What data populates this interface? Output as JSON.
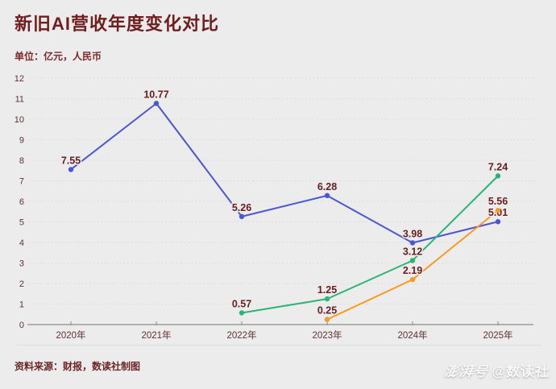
{
  "title": "新旧AI营收年度变化对比",
  "subtitle": "单位：亿元，人民币",
  "footer": {
    "source": "资料来源：财报，数读社制图"
  },
  "watermark": {
    "brand": "澎湃号",
    "handle": "@数读社"
  },
  "colors": {
    "background": "#ececec",
    "title": "#701d1d",
    "subtitle": "#7a2a2a",
    "value_label": "#66201f",
    "axis_tick_label": "#5e3333",
    "axis_line": "#8c8c8c",
    "grid_line": "#d8d8d8",
    "series_blue": "#4a55d8",
    "series_green": "#2ab475",
    "series_orange": "#f89a1e"
  },
  "chart_data": {
    "type": "line",
    "title": "新旧AI营收年度变化对比",
    "subtitle": "单位：亿元，人民币",
    "xlabel": "",
    "ylabel": "",
    "categories": [
      "2020年",
      "2021年",
      "2022年",
      "2023年",
      "2024年",
      "2025年"
    ],
    "series": [
      {
        "name": "blue-line",
        "color": "#4a55d8",
        "values": [
          7.55,
          10.77,
          5.26,
          6.28,
          3.98,
          5.01
        ]
      },
      {
        "name": "green-line",
        "color": "#2ab475",
        "values": [
          null,
          null,
          0.57,
          1.25,
          3.12,
          7.24
        ]
      },
      {
        "name": "orange-line",
        "color": "#f89a1e",
        "values": [
          null,
          null,
          null,
          0.25,
          2.19,
          5.56
        ]
      }
    ],
    "ylim": [
      0,
      12
    ],
    "ytick_step": 1,
    "grid": "dashed-horizontal",
    "legend": "none",
    "point_labels": "shown"
  }
}
